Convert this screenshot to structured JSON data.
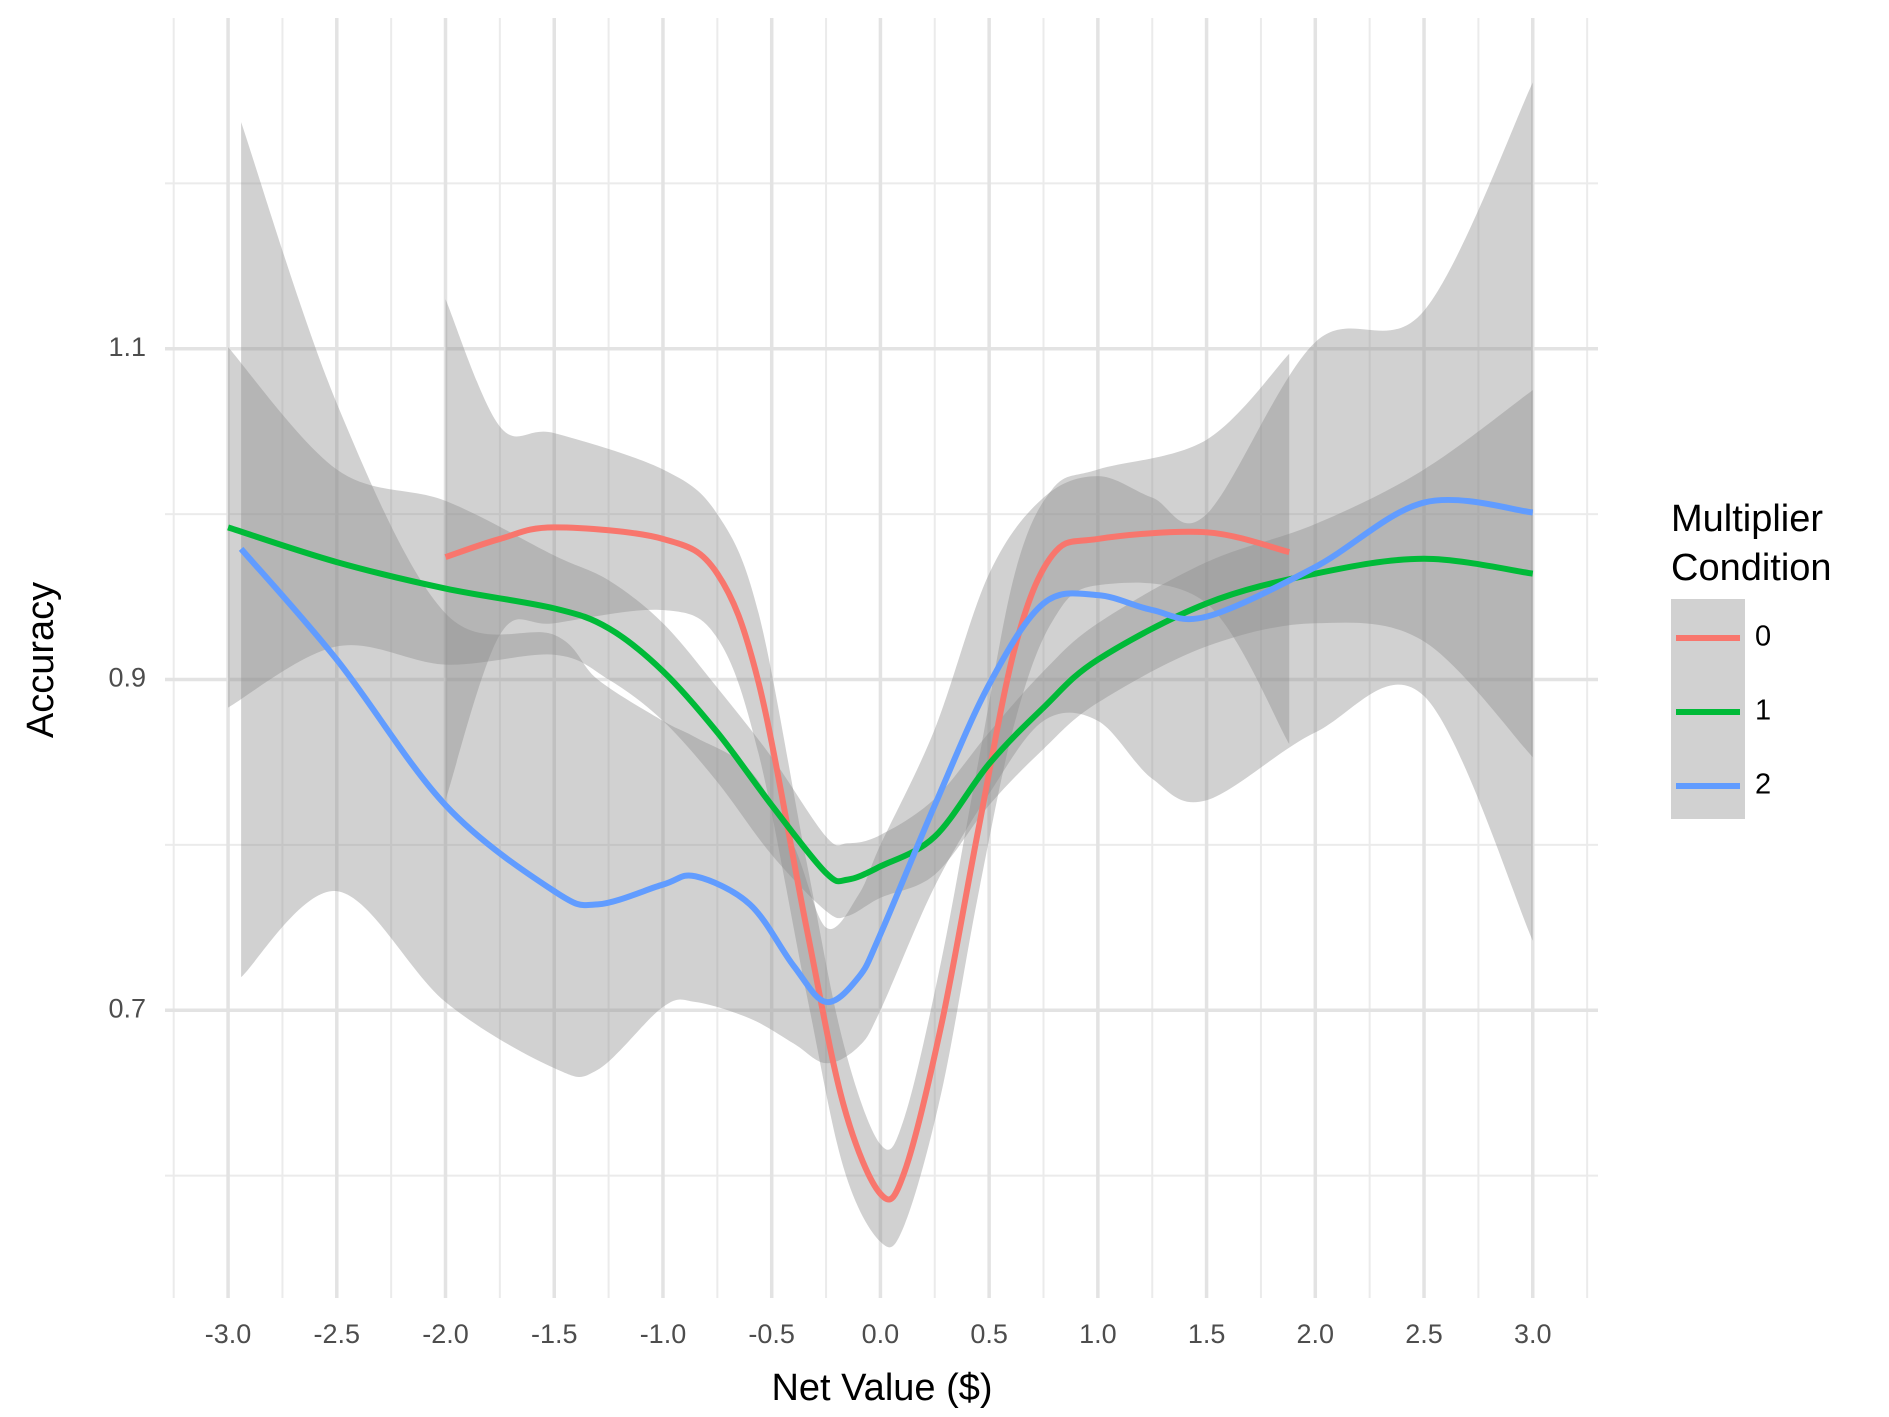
{
  "chart_data": {
    "type": "line",
    "x_label": "Net Value ($)",
    "y_label": "Accuracy",
    "legend_title": [
      "Multiplier",
      "Condition"
    ],
    "xlim": [
      -3.29,
      3.3
    ],
    "ylim": [
      0.526,
      1.3
    ],
    "xticks": [
      {
        "value": -3,
        "label": "-3.0"
      },
      -2.5,
      {
        "value": -2,
        "label": "-2.0"
      },
      -1.5,
      {
        "value": -1,
        "label": "-1.0"
      },
      -0.5,
      {
        "value": 0,
        "label": "0.0"
      },
      0.5,
      {
        "value": 1,
        "label": "1.0"
      },
      1.5,
      {
        "value": 2,
        "label": "2.0"
      },
      2.5,
      {
        "value": 3,
        "label": "3.0"
      }
    ],
    "xminor": [
      -3.25,
      -2.75,
      -2.25,
      -1.75,
      -1.25,
      -0.75,
      -0.25,
      0.25,
      0.75,
      1.25,
      1.75,
      2.25,
      2.75,
      3.25
    ],
    "yticks": [
      0.7,
      0.9,
      1.1
    ],
    "yminor": [
      0.6,
      0.8,
      1.0,
      1.2
    ],
    "grid": true,
    "band_color": "#8c8c8c",
    "series": [
      {
        "name": "0",
        "color": "#F8766D",
        "x": [
          -2.0,
          -1.75,
          -1.5,
          -1.0,
          -0.75,
          -0.56,
          -0.34,
          -0.17,
          0.0,
          0.11,
          0.28,
          0.45,
          0.62,
          0.79,
          1.0,
          1.5,
          1.88
        ],
        "values": [
          0.974,
          0.985,
          0.992,
          0.985,
          0.964,
          0.898,
          0.75,
          0.643,
          0.589,
          0.602,
          0.691,
          0.809,
          0.92,
          0.975,
          0.985,
          0.989,
          0.977
        ],
        "upper": [
          1.13,
          1.053,
          1.049,
          1.027,
          1.0,
          0.94,
          0.79,
          0.68,
          0.619,
          0.635,
          0.73,
          0.85,
          0.965,
          1.015,
          1.027,
          1.045,
          1.097
        ],
        "lower": [
          0.827,
          0.927,
          0.934,
          0.942,
          0.925,
          0.855,
          0.71,
          0.605,
          0.56,
          0.57,
          0.65,
          0.77,
          0.875,
          0.935,
          0.957,
          0.946,
          0.861
        ]
      },
      {
        "name": "1",
        "color": "#00BA38",
        "x": [
          -3.0,
          -2.5,
          -2.0,
          -1.5,
          -1.25,
          -1.0,
          -0.75,
          -0.5,
          -0.25,
          -0.15,
          0.0,
          0.25,
          0.5,
          0.75,
          1.0,
          1.5,
          2.0,
          2.5,
          3.0
        ],
        "values": [
          0.992,
          0.971,
          0.955,
          0.943,
          0.931,
          0.905,
          0.868,
          0.824,
          0.783,
          0.779,
          0.787,
          0.805,
          0.849,
          0.883,
          0.912,
          0.946,
          0.964,
          0.973,
          0.964
        ],
        "upper": [
          1.101,
          1.027,
          1.008,
          0.975,
          0.96,
          0.934,
          0.895,
          0.853,
          0.805,
          0.801,
          0.806,
          0.828,
          0.868,
          0.905,
          0.934,
          0.971,
          0.994,
          1.027,
          1.075
        ],
        "lower": [
          0.883,
          0.92,
          0.909,
          0.915,
          0.9,
          0.875,
          0.838,
          0.794,
          0.76,
          0.757,
          0.768,
          0.782,
          0.824,
          0.858,
          0.886,
          0.92,
          0.934,
          0.923,
          0.853
        ]
      },
      {
        "name": "2",
        "color": "#619CFF",
        "x": [
          -2.94,
          -2.5,
          -2.0,
          -1.5,
          -1.3,
          -1.0,
          -0.85,
          -0.6,
          -0.4,
          -0.25,
          -0.1,
          0.0,
          0.25,
          0.5,
          0.75,
          1.0,
          1.25,
          1.5,
          2.0,
          2.5,
          3.0
        ],
        "values": [
          0.979,
          0.912,
          0.824,
          0.772,
          0.764,
          0.776,
          0.781,
          0.764,
          0.727,
          0.705,
          0.72,
          0.746,
          0.824,
          0.897,
          0.946,
          0.951,
          0.942,
          0.938,
          0.968,
          1.007,
          1.001
        ],
        "upper": [
          1.237,
          1.067,
          0.94,
          0.927,
          0.9,
          0.875,
          0.865,
          0.845,
          0.8,
          0.75,
          0.77,
          0.8,
          0.87,
          0.964,
          1.01,
          1.023,
          1.01,
          1.0,
          1.104,
          1.123,
          1.261
        ],
        "lower": [
          0.72,
          0.772,
          0.705,
          0.665,
          0.664,
          0.702,
          0.705,
          0.695,
          0.68,
          0.668,
          0.678,
          0.7,
          0.775,
          0.831,
          0.875,
          0.875,
          0.84,
          0.827,
          0.868,
          0.89,
          0.742
        ]
      }
    ]
  }
}
